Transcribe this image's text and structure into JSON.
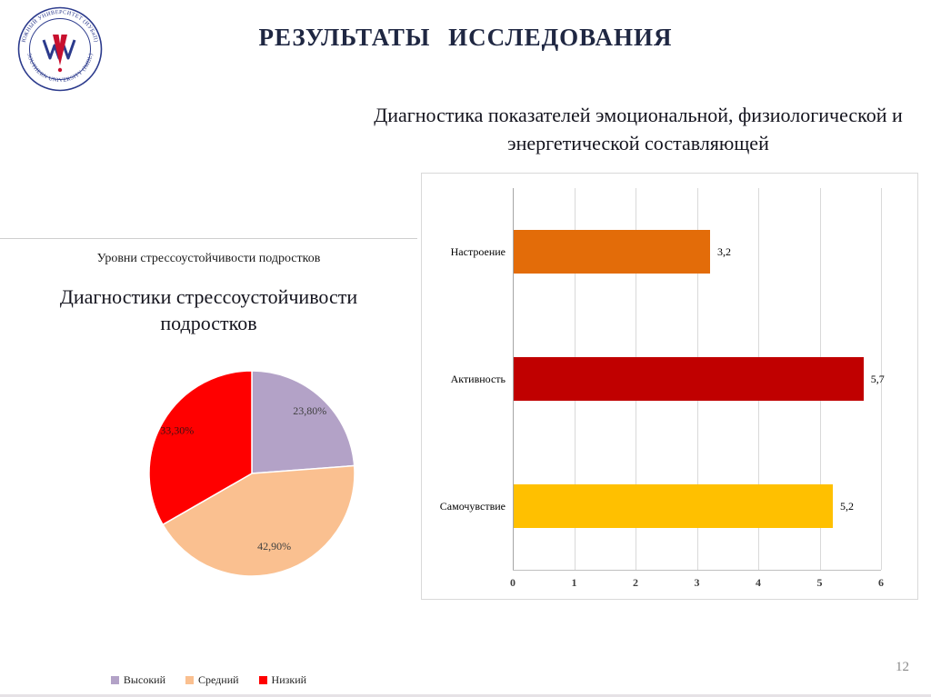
{
  "slide": {
    "title": "РЕЗУЛЬТАТЫ ИССЛЕДОВАНИЯ",
    "page_number": "12"
  },
  "logo": {
    "arc_text_top": "ЮЖНЫЙ УНИВЕРСИТЕТ (ИУБиП)",
    "arc_text_bottom": "SOUTHERN UNIVERSITY (IMBL)"
  },
  "chart_data": [
    {
      "type": "pie",
      "caption": "Уровни стрессоустойчивости подростков",
      "title": "Диагностики стрессоустойчивости подростков",
      "categories": [
        "Высокий",
        "Средний",
        "Низкий"
      ],
      "values": [
        23.8,
        42.9,
        33.3
      ],
      "value_labels": [
        "23,80%",
        "42,90%",
        "33,30%"
      ],
      "colors": [
        "#b3a2c7",
        "#fac090",
        "#ff0000"
      ],
      "label_colors": [
        "#404040",
        "#404040",
        "#401010"
      ],
      "start_angle_deg": -90,
      "direction": "clockwise",
      "legend_position": "bottom"
    },
    {
      "type": "bar",
      "orientation": "horizontal",
      "title": "Диагностика показателей эмоциональной, физиологической и энергетической составляющей",
      "categories": [
        "Настроение",
        "Активность",
        "Самочувствие"
      ],
      "values": [
        3.2,
        5.7,
        5.2
      ],
      "value_labels": [
        "3,2",
        "5,7",
        "5,2"
      ],
      "colors": [
        "#e36c09",
        "#c00000",
        "#ffc000"
      ],
      "xlim": [
        0,
        6
      ],
      "xticks": [
        "0",
        "1",
        "2",
        "3",
        "4",
        "5",
        "6"
      ],
      "grid": true
    }
  ]
}
